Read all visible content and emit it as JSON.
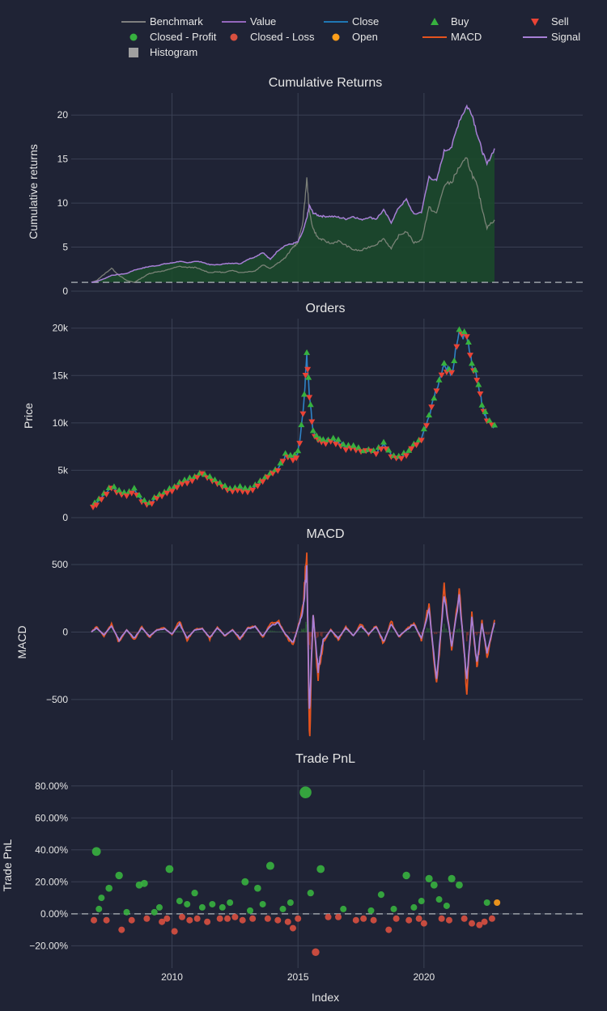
{
  "legend": {
    "position": "top",
    "items": [
      {
        "label": "Benchmark",
        "symbol": "line",
        "color": "#7f7f7f"
      },
      {
        "label": "Value",
        "symbol": "line",
        "color": "#9467bd"
      },
      {
        "label": "Close",
        "symbol": "line",
        "color": "#1f77b4"
      },
      {
        "label": "Buy",
        "symbol": "triangle-up",
        "color": "#37b13f"
      },
      {
        "label": "Sell",
        "symbol": "triangle-down",
        "color": "#ea4335"
      },
      {
        "label": "Closed - Profit",
        "symbol": "circle",
        "color": "#37b13f"
      },
      {
        "label": "Closed - Loss",
        "symbol": "circle",
        "color": "#d95040"
      },
      {
        "label": "Open",
        "symbol": "circle",
        "color": "#ff9f1a"
      },
      {
        "label": "MACD",
        "symbol": "line",
        "color": "#e5531e"
      },
      {
        "label": "Signal",
        "symbol": "line",
        "color": "#a77fd6"
      },
      {
        "label": "Histogram",
        "symbol": "square",
        "color": "#a0a0a0"
      }
    ]
  },
  "x_axis": {
    "title": "Index",
    "ticks": [
      "2010",
      "2015",
      "2020"
    ]
  },
  "chart_data": [
    {
      "type": "area",
      "title": "Cumulative Returns",
      "ylabel": "Cumulative returns",
      "yticks": [
        "0",
        "5",
        "10",
        "15",
        "20"
      ],
      "ylim": [
        0,
        22.5
      ],
      "xlim": [
        2006.0,
        2026.3
      ],
      "baseline": 1,
      "series": [
        {
          "name": "Value",
          "color": "#a77fd6",
          "x": [
            2006.8,
            2007.0,
            2007.3,
            2007.6,
            2007.9,
            2008.2,
            2008.5,
            2008.8,
            2009.1,
            2009.4,
            2009.7,
            2010.0,
            2010.3,
            2010.6,
            2010.9,
            2011.2,
            2011.5,
            2011.8,
            2012.1,
            2012.4,
            2012.7,
            2013.0,
            2013.3,
            2013.6,
            2013.9,
            2014.2,
            2014.5,
            2014.8,
            2015.0,
            2015.2,
            2015.35,
            2015.45,
            2015.6,
            2015.8,
            2016.0,
            2016.3,
            2016.6,
            2016.9,
            2017.2,
            2017.5,
            2017.8,
            2018.1,
            2018.4,
            2018.7,
            2019.0,
            2019.3,
            2019.6,
            2019.9,
            2020.2,
            2020.5,
            2020.8,
            2021.1,
            2021.4,
            2021.7,
            2021.9,
            2022.1,
            2022.3,
            2022.5,
            2022.8
          ],
          "y": [
            1.0,
            1.1,
            1.4,
            1.8,
            1.9,
            2.0,
            2.4,
            2.6,
            2.8,
            2.9,
            3.1,
            3.2,
            3.4,
            3.2,
            3.4,
            3.3,
            3.0,
            3.0,
            3.1,
            3.2,
            3.1,
            3.6,
            3.9,
            4.4,
            3.6,
            4.6,
            5.2,
            5.4,
            5.6,
            6.8,
            8.3,
            9.7,
            8.9,
            8.6,
            8.5,
            8.5,
            8.4,
            8.2,
            8.5,
            8.1,
            8.4,
            8.2,
            9.2,
            7.8,
            9.5,
            10.4,
            8.7,
            9.0,
            13.0,
            12.5,
            15.9,
            16.4,
            19.4,
            21.0,
            20.2,
            18.0,
            16.0,
            14.4,
            16.2
          ]
        },
        {
          "name": "Benchmark",
          "color": "#858a80",
          "x": [
            2006.8,
            2007.0,
            2007.3,
            2007.6,
            2007.9,
            2008.2,
            2008.5,
            2008.8,
            2009.1,
            2009.4,
            2009.7,
            2010.0,
            2010.3,
            2010.6,
            2010.9,
            2011.2,
            2011.5,
            2011.8,
            2012.1,
            2012.4,
            2012.7,
            2013.0,
            2013.3,
            2013.6,
            2013.9,
            2014.2,
            2014.5,
            2014.8,
            2015.0,
            2015.2,
            2015.35,
            2015.45,
            2015.6,
            2015.8,
            2016.0,
            2016.3,
            2016.6,
            2016.9,
            2017.2,
            2017.5,
            2017.8,
            2018.1,
            2018.4,
            2018.7,
            2019.0,
            2019.3,
            2019.6,
            2019.9,
            2020.2,
            2020.5,
            2020.8,
            2021.1,
            2021.4,
            2021.7,
            2021.9,
            2022.1,
            2022.3,
            2022.5,
            2022.8
          ],
          "y": [
            1.0,
            1.2,
            1.9,
            2.6,
            1.8,
            1.2,
            1.0,
            1.5,
            2.0,
            2.2,
            2.3,
            2.6,
            2.8,
            2.7,
            2.7,
            2.4,
            2.1,
            2.2,
            2.1,
            2.4,
            2.1,
            2.2,
            2.3,
            3.0,
            2.6,
            3.2,
            3.8,
            5.0,
            5.5,
            8.0,
            12.8,
            9.0,
            7.1,
            6.0,
            5.8,
            5.4,
            5.7,
            5.2,
            4.7,
            4.6,
            5.0,
            5.3,
            6.0,
            4.8,
            6.3,
            6.8,
            5.5,
            5.8,
            9.5,
            8.8,
            12.0,
            12.4,
            14.1,
            15.0,
            13.3,
            12.0,
            9.5,
            7.2,
            8.1
          ]
        }
      ]
    },
    {
      "type": "line",
      "title": "Orders",
      "ylabel": "Price",
      "yticks": [
        "0",
        "5k",
        "10k",
        "15k",
        "20k"
      ],
      "ylim": [
        0,
        21000
      ],
      "xlim": [
        2006.0,
        2026.3
      ],
      "series": [
        {
          "name": "Close",
          "color": "#2f82c6",
          "x": [
            2006.8,
            2007.0,
            2007.3,
            2007.6,
            2007.9,
            2008.2,
            2008.5,
            2008.8,
            2009.1,
            2009.4,
            2009.7,
            2010.0,
            2010.3,
            2010.6,
            2010.9,
            2011.2,
            2011.5,
            2011.8,
            2012.1,
            2012.4,
            2012.7,
            2013.0,
            2013.3,
            2013.6,
            2013.9,
            2014.2,
            2014.5,
            2014.8,
            2015.0,
            2015.2,
            2015.35,
            2015.45,
            2015.6,
            2015.8,
            2016.0,
            2016.3,
            2016.6,
            2016.9,
            2017.2,
            2017.5,
            2017.8,
            2018.1,
            2018.4,
            2018.7,
            2019.0,
            2019.3,
            2019.6,
            2019.9,
            2020.2,
            2020.5,
            2020.8,
            2021.1,
            2021.4,
            2021.7,
            2021.9,
            2022.1,
            2022.3,
            2022.5,
            2022.8
          ],
          "y": [
            1200,
            1500,
            2400,
            3200,
            2700,
            2500,
            2900,
            1800,
            1400,
            2200,
            2600,
            3000,
            3600,
            3900,
            4200,
            4700,
            4100,
            3700,
            3200,
            2900,
            3100,
            2800,
            3300,
            3900,
            4600,
            5200,
            6500,
            6200,
            6800,
            11000,
            17000,
            13000,
            9000,
            8200,
            8000,
            8300,
            7900,
            7500,
            7300,
            7000,
            7100,
            6900,
            7700,
            6600,
            6200,
            6700,
            7600,
            8400,
            10800,
            13500,
            16000,
            15200,
            19700,
            18900,
            16200,
            14800,
            12000,
            10200,
            9600
          ]
        }
      ],
      "markers": [
        {
          "name": "Buy",
          "symbol": "triangle-up",
          "color": "#37b13f"
        },
        {
          "name": "Sell",
          "symbol": "triangle-down",
          "color": "#ea4335"
        }
      ]
    },
    {
      "type": "line",
      "title": "MACD",
      "ylabel": "MACD",
      "yticks": [
        "−500",
        "0",
        "500"
      ],
      "ylim": [
        -800,
        650
      ],
      "xlim": [
        2006.0,
        2026.3
      ],
      "series": [
        {
          "name": "MACD",
          "color": "#e5531e",
          "x": [
            2006.8,
            2007.0,
            2007.3,
            2007.6,
            2007.9,
            2008.2,
            2008.5,
            2008.8,
            2009.1,
            2009.4,
            2009.7,
            2010.0,
            2010.3,
            2010.6,
            2010.9,
            2011.2,
            2011.5,
            2011.8,
            2012.1,
            2012.4,
            2012.7,
            2013.0,
            2013.3,
            2013.6,
            2013.9,
            2014.2,
            2014.5,
            2014.8,
            2015.0,
            2015.2,
            2015.35,
            2015.45,
            2015.6,
            2015.8,
            2016.0,
            2016.3,
            2016.6,
            2016.9,
            2017.2,
            2017.5,
            2017.8,
            2018.1,
            2018.4,
            2018.7,
            2019.0,
            2019.3,
            2019.6,
            2019.9,
            2020.2,
            2020.5,
            2020.8,
            2021.1,
            2021.4,
            2021.7,
            2021.9,
            2022.1,
            2022.3,
            2022.5,
            2022.8
          ],
          "y": [
            0,
            40,
            -30,
            60,
            -80,
            20,
            -60,
            40,
            -40,
            20,
            30,
            -20,
            80,
            -60,
            20,
            30,
            -50,
            40,
            -30,
            20,
            -60,
            30,
            50,
            -40,
            60,
            90,
            -20,
            -100,
            40,
            200,
            570,
            -800,
            150,
            -350,
            -80,
            20,
            -60,
            40,
            -30,
            60,
            -20,
            50,
            -90,
            80,
            -40,
            20,
            70,
            -60,
            210,
            -440,
            340,
            -120,
            310,
            -420,
            130,
            -280,
            80,
            -190,
            90
          ]
        },
        {
          "name": "Signal",
          "color": "#a77fd6",
          "x": [
            2006.8,
            2007.0,
            2007.3,
            2007.6,
            2007.9,
            2008.2,
            2008.5,
            2008.8,
            2009.1,
            2009.4,
            2009.7,
            2010.0,
            2010.3,
            2010.6,
            2010.9,
            2011.2,
            2011.5,
            2011.8,
            2012.1,
            2012.4,
            2012.7,
            2013.0,
            2013.3,
            2013.6,
            2013.9,
            2014.2,
            2014.5,
            2014.8,
            2015.0,
            2015.2,
            2015.35,
            2015.45,
            2015.6,
            2015.8,
            2016.0,
            2016.3,
            2016.6,
            2016.9,
            2017.2,
            2017.5,
            2017.8,
            2018.1,
            2018.4,
            2018.7,
            2019.0,
            2019.3,
            2019.6,
            2019.9,
            2020.2,
            2020.5,
            2020.8,
            2021.1,
            2021.4,
            2021.7,
            2021.9,
            2022.1,
            2022.3,
            2022.5,
            2022.8
          ],
          "y": [
            0,
            30,
            -20,
            45,
            -60,
            15,
            -45,
            30,
            -30,
            15,
            25,
            -15,
            60,
            -45,
            15,
            25,
            -40,
            30,
            -25,
            15,
            -45,
            25,
            40,
            -30,
            45,
            70,
            -15,
            -80,
            30,
            160,
            470,
            -600,
            120,
            -280,
            -60,
            15,
            -45,
            30,
            -25,
            45,
            -15,
            40,
            -70,
            60,
            -30,
            15,
            55,
            -45,
            170,
            -350,
            280,
            -100,
            260,
            -340,
            110,
            -230,
            65,
            -150,
            70
          ]
        }
      ]
    },
    {
      "type": "scatter",
      "title": "Trade PnL",
      "ylabel": "Trade PnL",
      "yticks": [
        "−20.00%",
        "0.00%",
        "20.00%",
        "40.00%",
        "60.00%",
        "80.00%"
      ],
      "ylim": [
        -34,
        90
      ],
      "xlim": [
        2006.0,
        2026.3
      ],
      "baseline": 0,
      "series": [
        {
          "name": "Closed - Profit",
          "color": "#37b13f",
          "x": [
            2007.0,
            2007.1,
            2007.2,
            2007.5,
            2007.9,
            2008.2,
            2008.7,
            2008.9,
            2009.3,
            2009.5,
            2009.9,
            2010.3,
            2010.6,
            2010.9,
            2011.2,
            2011.6,
            2012.0,
            2012.3,
            2012.9,
            2013.1,
            2013.4,
            2013.6,
            2013.9,
            2014.4,
            2014.7,
            2015.3,
            2015.5,
            2015.9,
            2016.8,
            2017.9,
            2018.3,
            2018.8,
            2019.3,
            2019.6,
            2019.9,
            2020.2,
            2020.4,
            2020.6,
            2020.9,
            2021.1,
            2021.4,
            2022.5
          ],
          "y": [
            39,
            3,
            10,
            16,
            24,
            1,
            18,
            19,
            1,
            4,
            28,
            8,
            6,
            13,
            4,
            6,
            4,
            7,
            20,
            2,
            16,
            6,
            30,
            3,
            7,
            76,
            13,
            28,
            3,
            2,
            12,
            3,
            24,
            4,
            8,
            22,
            18,
            9,
            5,
            22,
            18,
            7
          ]
        },
        {
          "name": "Closed - Loss",
          "color": "#d95040",
          "x": [
            2006.9,
            2007.4,
            2008.0,
            2008.4,
            2009.0,
            2009.6,
            2009.8,
            2010.1,
            2010.4,
            2010.7,
            2011.0,
            2011.4,
            2011.9,
            2012.2,
            2012.5,
            2012.8,
            2013.2,
            2013.8,
            2014.2,
            2014.6,
            2014.8,
            2015.0,
            2015.7,
            2016.2,
            2016.6,
            2017.3,
            2017.6,
            2018.0,
            2018.6,
            2018.9,
            2019.4,
            2019.8,
            2020.0,
            2020.7,
            2021.0,
            2021.6,
            2021.9,
            2022.2,
            2022.4,
            2022.7
          ],
          "y": [
            -4,
            -4,
            -10,
            -4,
            -3,
            -5,
            -3,
            -11,
            -2,
            -4,
            -3,
            -5,
            -3,
            -3,
            -2,
            -4,
            -3,
            -3,
            -4,
            -5,
            -9,
            -3,
            -24,
            -2,
            -2,
            -4,
            -3,
            -4,
            -10,
            -3,
            -4,
            -3,
            -6,
            -3,
            -4,
            -3,
            -6,
            -7,
            -5,
            -3
          ]
        },
        {
          "name": "Open",
          "color": "#ff9f1a",
          "x": [
            2022.9
          ],
          "y": [
            7
          ]
        }
      ]
    }
  ]
}
